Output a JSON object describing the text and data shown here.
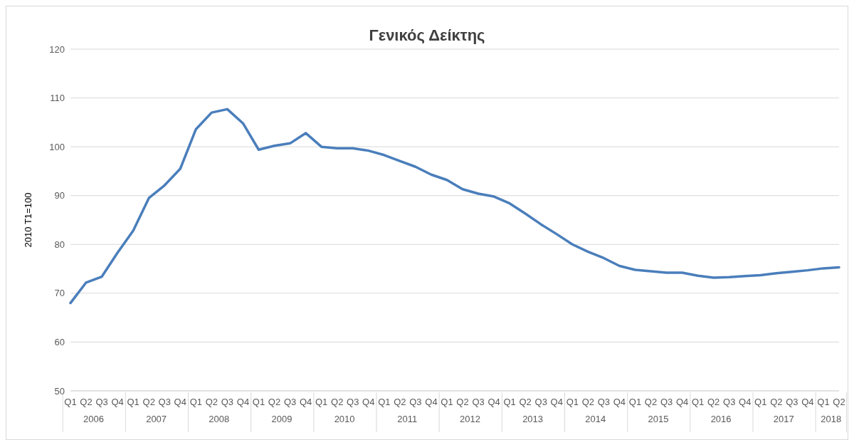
{
  "chart_data": {
    "type": "line",
    "title": "Γενικός Δείκτης",
    "ylabel": "2010 T1=100",
    "categories": [
      "Q1",
      "Q2",
      "Q3",
      "Q4",
      "Q1",
      "Q2",
      "Q3",
      "Q4",
      "Q1",
      "Q2",
      "Q3",
      "Q4",
      "Q1",
      "Q2",
      "Q3",
      "Q4",
      "Q1",
      "Q2",
      "Q3",
      "Q4",
      "Q1",
      "Q2",
      "Q3",
      "Q4",
      "Q1",
      "Q2",
      "Q3",
      "Q4",
      "Q1",
      "Q2",
      "Q3",
      "Q4",
      "Q1",
      "Q2",
      "Q3",
      "Q4",
      "Q1",
      "Q2",
      "Q3",
      "Q4",
      "Q1",
      "Q2",
      "Q3",
      "Q4",
      "Q1",
      "Q2",
      "Q3",
      "Q4",
      "Q1",
      "Q2"
    ],
    "annotations": [
      "2006",
      "2007",
      "2008",
      "2009",
      "2010",
      "2011",
      "2012",
      "2013",
      "2014",
      "2015",
      "2016",
      "2017",
      "2018"
    ],
    "series": [
      {
        "color": "#4a7ebb",
        "values": [
          68.0,
          72.2,
          73.4,
          78.3,
          82.8,
          89.5,
          92.1,
          95.5,
          103.6,
          107.0,
          107.7,
          104.8,
          99.4,
          100.2,
          100.7,
          102.8,
          100.0,
          99.7,
          99.7,
          99.2,
          98.3,
          97.1,
          95.9,
          94.3,
          93.2,
          91.3,
          90.4,
          89.8,
          88.4,
          86.3,
          84.1,
          82.1,
          80.0,
          78.5,
          77.2,
          75.6,
          74.8,
          74.5,
          74.2,
          74.2,
          73.6,
          73.2,
          73.3,
          73.5,
          73.7,
          74.1,
          74.4,
          74.7,
          75.1,
          75.3
        ]
      }
    ],
    "ylim": [
      50,
      120
    ],
    "yticks": [
      50,
      60,
      70,
      80,
      90,
      100,
      110,
      120
    ],
    "grid": "y",
    "legend": false,
    "marker": "none",
    "line_style": "solid"
  }
}
